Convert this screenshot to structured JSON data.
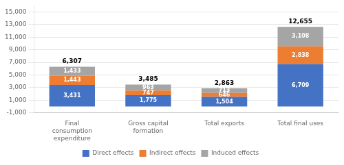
{
  "chart_data": {
    "type": "bar",
    "stacked": true,
    "data_labels": true,
    "grid": true,
    "legend": "bottom",
    "categories": [
      "Final\nconsumption\nexpenditure",
      "Gross capital\nformation",
      "Total exports",
      "Total final uses"
    ],
    "series": [
      {
        "name": "Direct effects",
        "color": "#4472C4",
        "values": [
          3431,
          1775,
          1504,
          6709
        ],
        "value_labels": [
          "3,431",
          "1,775",
          "1,504",
          "6,709"
        ]
      },
      {
        "name": "Indirect effects",
        "color": "#ED7D31",
        "values": [
          1443,
          747,
          646,
          2838
        ],
        "value_labels": [
          "1,443",
          "747",
          "646",
          "2,838"
        ]
      },
      {
        "name": "Induced effects",
        "color": "#A5A5A5",
        "values": [
          1433,
          963,
          713,
          3108
        ],
        "value_labels": [
          "1,433",
          "963",
          "713",
          "3,108"
        ]
      }
    ],
    "totals": [
      6307,
      3485,
      2863,
      12655
    ],
    "total_labels": [
      "6,307",
      "3,485",
      "2,863",
      "12,655"
    ],
    "ylim": [
      -1000,
      16000
    ],
    "yticks": [
      {
        "value": -1000,
        "label": "-1,000"
      },
      {
        "value": 1000,
        "label": "1,000"
      },
      {
        "value": 3000,
        "label": "3,000"
      },
      {
        "value": 5000,
        "label": "5,000"
      },
      {
        "value": 7000,
        "label": "7,000"
      },
      {
        "value": 9000,
        "label": "9,000"
      },
      {
        "value": 11000,
        "label": "11,000"
      },
      {
        "value": 13000,
        "label": "13,000"
      },
      {
        "value": 15000,
        "label": "15,000"
      }
    ]
  }
}
